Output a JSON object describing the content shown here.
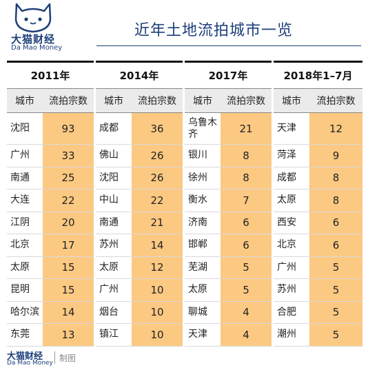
{
  "brand": {
    "name_cn": "大猫财经",
    "name_en": "Da  Mao Money",
    "logo_icon": "cat-face-icon"
  },
  "title": "近年土地流拍城市一览",
  "columns": {
    "city": "城市",
    "count": "流拍宗数"
  },
  "groups": [
    {
      "year": "2011年",
      "rows": [
        {
          "city": "沈阳",
          "count": "93"
        },
        {
          "city": "广州",
          "count": "33"
        },
        {
          "city": "南通",
          "count": "25"
        },
        {
          "city": "大连",
          "count": "22"
        },
        {
          "city": "江阴",
          "count": "20"
        },
        {
          "city": "北京",
          "count": "17"
        },
        {
          "city": "太原",
          "count": "15"
        },
        {
          "city": "昆明",
          "count": "15"
        },
        {
          "city": "哈尔滨",
          "count": "14"
        },
        {
          "city": "东莞",
          "count": "13"
        }
      ]
    },
    {
      "year": "2014年",
      "rows": [
        {
          "city": "成都",
          "count": "36"
        },
        {
          "city": "佛山",
          "count": "26"
        },
        {
          "city": "沈阳",
          "count": "26"
        },
        {
          "city": "中山",
          "count": "22"
        },
        {
          "city": "南通",
          "count": "21"
        },
        {
          "city": "苏州",
          "count": "14"
        },
        {
          "city": "太原",
          "count": "12"
        },
        {
          "city": "广州",
          "count": "10"
        },
        {
          "city": "烟台",
          "count": "10"
        },
        {
          "city": "镇江",
          "count": "10"
        }
      ]
    },
    {
      "year": "2017年",
      "rows": [
        {
          "city": "乌鲁木齐",
          "count": "21"
        },
        {
          "city": "银川",
          "count": "8"
        },
        {
          "city": "徐州",
          "count": "8"
        },
        {
          "city": "衡水",
          "count": "7"
        },
        {
          "city": "济南",
          "count": "6"
        },
        {
          "city": "邯郸",
          "count": "6"
        },
        {
          "city": "芜湖",
          "count": "5"
        },
        {
          "city": "太原",
          "count": "5"
        },
        {
          "city": "聊城",
          "count": "4"
        },
        {
          "city": "天津",
          "count": "4"
        }
      ]
    },
    {
      "year": "2018年1–7月",
      "rows": [
        {
          "city": "天津",
          "count": "12"
        },
        {
          "city": "菏泽",
          "count": "9"
        },
        {
          "city": "成都",
          "count": "8"
        },
        {
          "city": "太原",
          "count": "8"
        },
        {
          "city": "西安",
          "count": "6"
        },
        {
          "city": "北京",
          "count": "6"
        },
        {
          "city": "广州",
          "count": "5"
        },
        {
          "city": "苏州",
          "count": "5"
        },
        {
          "city": "合肥",
          "count": "5"
        },
        {
          "city": "潮州",
          "count": "5"
        }
      ]
    }
  ],
  "footer": {
    "name_cn": "大猫财经",
    "name_en": "Da  Mao Money",
    "note": "制图"
  }
}
